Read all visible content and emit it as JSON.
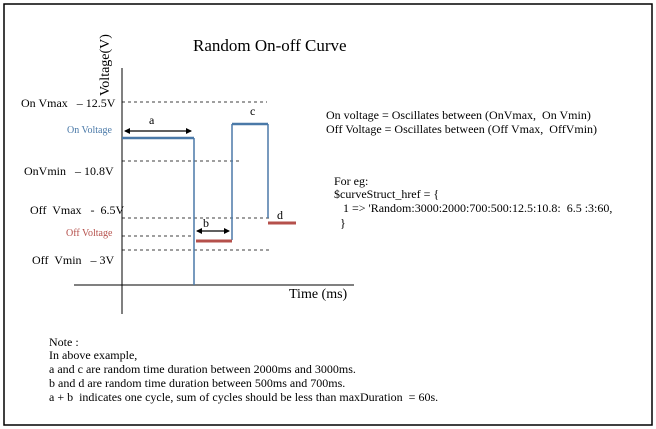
{
  "title": "Random On-off Curve",
  "axes": {
    "y_label": "Voltage(V)",
    "x_label": "Time (ms)"
  },
  "levels": {
    "on_vmax": "On Vmax   – 12.5V",
    "on_voltage": "On Voltage",
    "on_vmin": "OnVmin   – 10.8V",
    "off_vmax": "Off  Vmax   -  6.5V",
    "off_voltage": "Off Voltage",
    "off_vmin": "Off  Vmin   – 3V"
  },
  "segment_labels": {
    "a": "a",
    "b": "b",
    "c": "c",
    "d": "d"
  },
  "description": {
    "line1": "On voltage = Oscillates between (OnVmax,  On Vmin)",
    "line2": "Off Voltage = Oscillates between (Off Vmax,  OffVmin)"
  },
  "example": {
    "heading": "For eg:",
    "line1": "$curveStruct_href = {",
    "line2": "   1 => 'Random:3000:2000:700:500:12.5:10.8:  6.5 :3:60,",
    "line3": "  }"
  },
  "note": {
    "heading": "Note :",
    "line1": "In above example,",
    "line2": "a and c are random time duration between 2000ms and 3000ms.",
    "line3": "b and d are random time duration between 500ms and 700ms.",
    "line4": "a + b  indicates one cycle, sum of cycles should be less than maxDuration  = 60s."
  },
  "colors": {
    "on_line": "#4a79a8",
    "off_line": "#b5504b",
    "axis": "#000000",
    "frame": "#000000"
  }
}
